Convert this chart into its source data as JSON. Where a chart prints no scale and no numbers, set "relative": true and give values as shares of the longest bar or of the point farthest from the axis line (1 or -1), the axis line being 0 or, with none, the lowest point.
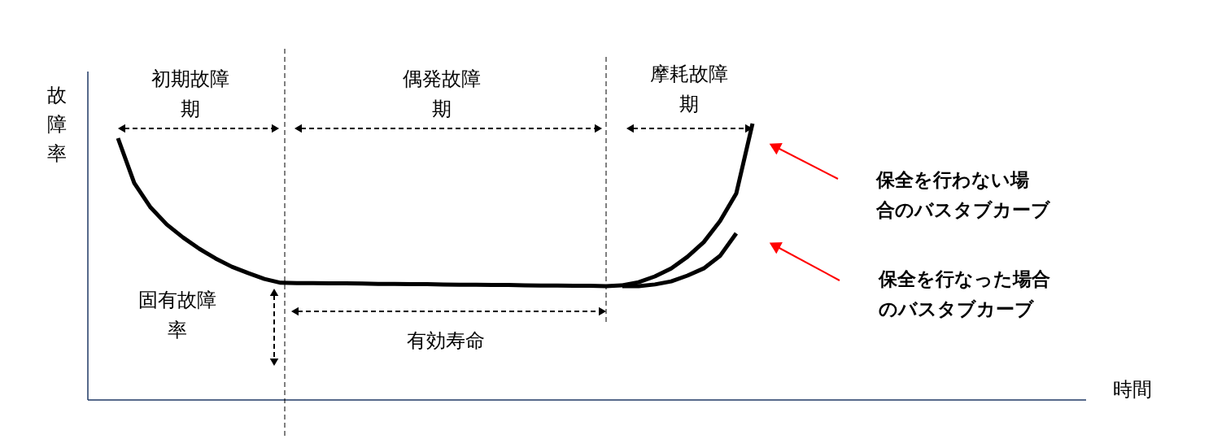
{
  "chart_data": {
    "type": "line",
    "relative": true,
    "ylabel": "故障率",
    "categories": [
      null,
      null,
      null,
      null,
      null,
      null,
      null,
      null,
      null,
      null,
      null,
      null,
      null,
      null,
      null,
      null,
      null,
      null,
      null,
      null,
      null,
      null,
      null,
      null,
      null,
      null,
      null,
      null,
      null,
      null,
      null,
      null,
      null,
      null,
      null,
      null,
      null,
      null,
      null,
      null
    ],
    "series": [
      {
        "color": "#000000",
        "values": [
          0.947,
          0.785,
          0.697,
          0.635,
          0.588,
          0.547,
          0.512,
          0.482,
          0.459,
          0.438,
          0.424,
          0.423,
          0.423,
          0.422,
          0.422,
          0.421,
          0.42,
          0.42,
          0.419,
          0.419,
          0.418,
          0.417,
          0.417,
          0.416,
          0.416,
          0.415,
          0.414,
          0.414,
          0.413,
          0.413,
          0.412,
          0.415,
          0.426,
          0.447,
          0.476,
          0.518,
          0.571,
          0.647,
          0.747,
          1.0
        ]
      },
      {
        "color": "#000000",
        "values": [
          null,
          null,
          null,
          null,
          null,
          null,
          null,
          null,
          null,
          null,
          null,
          null,
          null,
          null,
          null,
          null,
          null,
          null,
          null,
          null,
          null,
          null,
          null,
          null,
          null,
          null,
          null,
          null,
          null,
          null,
          null,
          0.412,
          0.412,
          0.418,
          0.429,
          0.45,
          0.476,
          0.521,
          0.603,
          null
        ]
      }
    ],
    "annotations": [
      "初期故障期",
      "偶発故障期",
      "摩耗故障期",
      "固有故障率",
      "有効寿命",
      "保全を行わない場合のバスタブカーブ",
      "保全を行なった場合のバスタブカーブ",
      "時間"
    ],
    "line_style": "solid",
    "marker": "none"
  }
}
